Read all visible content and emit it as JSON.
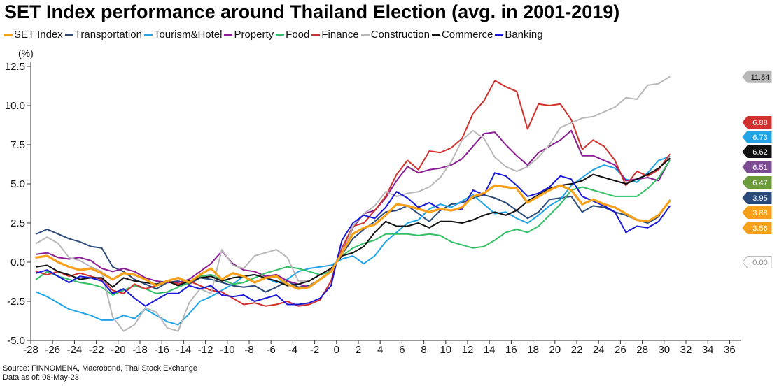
{
  "chart_data": {
    "type": "line",
    "title": "SET Index performance around Thailand Election (avg. in 2001-2019)",
    "ylabel": "(%)",
    "xlabel": "",
    "xlim": [
      -28,
      37
    ],
    "ylim": [
      -5.0,
      12.5
    ],
    "x_ticks": [
      -28,
      -26,
      -24,
      -22,
      -20,
      -18,
      -16,
      -14,
      -12,
      -10,
      -8,
      -6,
      -4,
      -2,
      0,
      2,
      4,
      6,
      8,
      10,
      12,
      14,
      16,
      18,
      20,
      22,
      24,
      26,
      28,
      30,
      32,
      34,
      36
    ],
    "y_ticks": [
      -5.0,
      -2.5,
      0.0,
      2.5,
      5.0,
      7.5,
      10.0,
      12.5
    ],
    "grid": false,
    "legend_position": "top",
    "x": [
      -27.5,
      -26.5,
      -25.5,
      -24.5,
      -23.5,
      -22.5,
      -21.5,
      -20.5,
      -19.5,
      -18.5,
      -17.5,
      -16.5,
      -15.5,
      -14.5,
      -13.5,
      -12.5,
      -11.5,
      -10.5,
      -9.5,
      -8.5,
      -7.5,
      -6.5,
      -5.5,
      -4.5,
      -3.5,
      -2.5,
      -1.5,
      -0.5,
      0,
      0.5,
      1.5,
      2.5,
      3.5,
      4.5,
      5.5,
      6.5,
      7.5,
      8.5,
      9.5,
      10.5,
      11.5,
      12.5,
      13.5,
      14.5,
      15.5,
      16.5,
      17.5,
      18.5,
      19.5,
      20.5,
      21.5,
      22.5,
      23.5,
      24.5,
      25.5,
      26.5,
      27.5,
      28.5,
      29.5,
      30.5
    ],
    "series": [
      {
        "name": "SET Index",
        "color": "#f7a11a",
        "width": 3.2,
        "values": [
          0.3,
          0.4,
          0.0,
          -0.3,
          -0.5,
          -0.4,
          -0.7,
          -1.1,
          -0.7,
          -0.8,
          -1.1,
          -1.5,
          -1.2,
          -1.0,
          -1.3,
          -0.8,
          -0.4,
          -1.1,
          -0.7,
          -0.9,
          -1.3,
          -1.0,
          -0.9,
          -1.4,
          -1.7,
          -1.6,
          -1.1,
          -0.6,
          0.0,
          0.6,
          1.8,
          2.2,
          2.4,
          3.0,
          3.7,
          3.6,
          3.4,
          3.2,
          3.4,
          3.3,
          3.5,
          4.2,
          4.4,
          4.9,
          4.8,
          4.7,
          3.8,
          4.2,
          4.6,
          4.9,
          4.6,
          3.7,
          4.0,
          3.7,
          3.5,
          3.1,
          2.7,
          2.6,
          3.0,
          3.9
        ]
      },
      {
        "name": "Transportation",
        "color": "#2b4a7a",
        "width": 2,
        "values": [
          1.8,
          2.1,
          1.8,
          1.5,
          1.3,
          1.0,
          0.9,
          -0.3,
          -0.6,
          -1.1,
          -1.4,
          -1.7,
          -1.3,
          -1.2,
          -1.4,
          -1.0,
          -1.1,
          -1.3,
          -1.5,
          -1.6,
          -1.5,
          -1.9,
          -1.6,
          -1.2,
          -1.6,
          -1.5,
          -1.1,
          -0.6,
          0.0,
          0.5,
          1.5,
          2.1,
          2.6,
          3.2,
          3.3,
          3.6,
          3.1,
          2.6,
          3.3,
          3.7,
          3.8,
          4.1,
          4.3,
          4.1,
          3.8,
          3.3,
          2.8,
          3.2,
          4.0,
          4.1,
          4.2,
          3.2,
          3.6,
          3.5,
          3.2,
          3.0,
          2.7,
          2.5,
          2.9,
          3.95
        ]
      },
      {
        "name": "Tourism&Hotel",
        "color": "#20a4e6",
        "width": 2,
        "values": [
          -1.9,
          -2.2,
          -2.6,
          -3.0,
          -3.2,
          -3.4,
          -3.7,
          -3.7,
          -3.4,
          -3.6,
          -3.0,
          -3.4,
          -3.8,
          -4.0,
          -3.3,
          -2.5,
          -2.2,
          -1.8,
          -1.4,
          -0.9,
          -0.8,
          -1.0,
          -1.3,
          -1.1,
          -0.6,
          -0.4,
          -0.3,
          -0.2,
          0.0,
          0.2,
          0.4,
          -0.1,
          0.4,
          1.3,
          1.9,
          2.5,
          2.7,
          3.4,
          3.7,
          3.5,
          3.9,
          4.3,
          3.7,
          3.1,
          3.2,
          2.8,
          2.5,
          3.0,
          3.6,
          4.0,
          4.9,
          5.4,
          5.9,
          6.2,
          6.0,
          5.3,
          5.1,
          5.7,
          6.5,
          6.73
        ]
      },
      {
        "name": "Property",
        "color": "#8a1f94",
        "width": 2,
        "values": [
          0.5,
          0.6,
          0.3,
          0.2,
          0.3,
          0.1,
          -0.4,
          -0.6,
          -0.4,
          -0.6,
          -1.0,
          -1.2,
          -1.3,
          -1.3,
          -1.1,
          -0.6,
          -0.1,
          0.7,
          -0.1,
          -0.5,
          -0.6,
          -0.9,
          -0.8,
          -1.2,
          -1.4,
          -1.6,
          -1.1,
          -0.5,
          0.0,
          0.6,
          2.2,
          3.1,
          3.3,
          4.1,
          5.2,
          6.1,
          5.7,
          5.9,
          6.0,
          6.2,
          6.6,
          7.4,
          8.2,
          8.3,
          7.5,
          6.8,
          6.2,
          7.0,
          7.4,
          7.8,
          8.4,
          6.8,
          6.8,
          6.5,
          6.2,
          5.2,
          5.3,
          5.4,
          5.2,
          6.51
        ]
      },
      {
        "name": "Food",
        "color": "#33c065",
        "width": 2,
        "values": [
          -1.1,
          -0.6,
          -0.9,
          -1.1,
          -1.3,
          -1.4,
          -1.6,
          -2.1,
          -1.8,
          -1.5,
          -1.7,
          -2.0,
          -1.9,
          -1.6,
          -1.3,
          -0.9,
          -0.8,
          -1.1,
          -1.4,
          -1.3,
          -1.0,
          -0.7,
          -0.5,
          -0.3,
          -0.4,
          -0.6,
          -0.8,
          -0.6,
          0.0,
          0.4,
          0.9,
          1.2,
          1.4,
          1.8,
          1.8,
          1.8,
          1.7,
          1.8,
          1.7,
          1.3,
          1.1,
          0.9,
          1.0,
          1.4,
          1.9,
          2.1,
          1.9,
          2.3,
          3.0,
          3.7,
          4.6,
          4.8,
          4.6,
          4.4,
          4.2,
          4.2,
          4.2,
          4.7,
          5.4,
          6.47
        ]
      },
      {
        "name": "Finance",
        "color": "#d0312e",
        "width": 2,
        "values": [
          -0.6,
          -0.8,
          -0.6,
          -0.9,
          -0.7,
          -0.9,
          -1.1,
          -1.8,
          -2.0,
          -1.4,
          -1.7,
          -1.5,
          -1.2,
          -1.4,
          -1.2,
          -1.5,
          -1.8,
          -1.9,
          -2.3,
          -2.7,
          -2.6,
          -2.8,
          -2.7,
          -2.5,
          -2.8,
          -2.7,
          -2.4,
          -1.2,
          0.0,
          0.9,
          2.3,
          2.5,
          3.3,
          4.2,
          5.6,
          6.5,
          5.9,
          7.1,
          7.0,
          7.3,
          7.9,
          9.5,
          10.3,
          11.6,
          11.2,
          10.9,
          8.5,
          10.1,
          10.0,
          10.1,
          9.1,
          7.2,
          7.8,
          7.4,
          6.5,
          4.9,
          5.8,
          5.5,
          5.9,
          6.88
        ]
      },
      {
        "name": "Construction",
        "color": "#b8b8b8",
        "width": 2,
        "values": [
          1.2,
          1.6,
          1.2,
          0.3,
          0.1,
          -0.3,
          -0.6,
          -3.5,
          -4.4,
          -4.0,
          -2.9,
          -3.2,
          -4.2,
          -4.4,
          -2.6,
          -1.7,
          -2.0,
          0.8,
          -0.2,
          -0.4,
          0.4,
          0.6,
          0.8,
          0.3,
          -1.2,
          -1.2,
          -0.8,
          -0.4,
          0.0,
          0.4,
          2.3,
          3.1,
          3.6,
          4.5,
          4.2,
          4.4,
          4.5,
          4.8,
          5.4,
          6.4,
          7.8,
          8.4,
          7.9,
          6.7,
          6.1,
          5.8,
          6.1,
          6.7,
          7.5,
          8.6,
          8.9,
          9.2,
          9.3,
          9.6,
          9.9,
          10.5,
          10.4,
          11.3,
          11.4,
          11.84
        ]
      },
      {
        "name": "Commerce",
        "color": "#111111",
        "width": 2,
        "values": [
          -0.3,
          -0.2,
          -0.6,
          -0.8,
          -1.1,
          -1.0,
          -1.0,
          -1.6,
          -1.0,
          -1.2,
          -1.3,
          -1.4,
          -1.2,
          -1.5,
          -1.2,
          -1.0,
          -0.9,
          -1.2,
          -1.0,
          -0.9,
          -0.8,
          -1.0,
          -1.2,
          -1.5,
          -1.4,
          -1.2,
          -0.8,
          -0.4,
          0.0,
          0.4,
          0.6,
          1.0,
          1.9,
          2.6,
          2.3,
          2.3,
          2.5,
          2.2,
          2.6,
          2.6,
          2.5,
          2.7,
          3.0,
          3.2,
          3.0,
          3.3,
          3.9,
          4.3,
          4.7,
          4.9,
          5.0,
          5.2,
          5.6,
          5.4,
          5.2,
          5.0,
          5.3,
          5.6,
          6.0,
          6.62
        ]
      },
      {
        "name": "Banking",
        "color": "#1818d8",
        "width": 2,
        "values": [
          -0.7,
          -0.5,
          -0.9,
          -1.3,
          -0.9,
          -1.0,
          -1.2,
          -2.0,
          -1.7,
          -2.3,
          -2.8,
          -2.4,
          -2.0,
          -2.0,
          -1.5,
          -1.7,
          -1.5,
          -2.1,
          -2.2,
          -2.1,
          -2.5,
          -2.3,
          -2.1,
          -2.7,
          -2.7,
          -2.6,
          -2.3,
          -1.5,
          0.0,
          1.4,
          2.5,
          3.0,
          2.8,
          3.5,
          4.5,
          4.1,
          3.5,
          3.8,
          3.4,
          3.3,
          3.4,
          4.6,
          4.3,
          5.7,
          5.5,
          4.9,
          4.2,
          4.4,
          4.8,
          5.5,
          5.3,
          4.2,
          3.9,
          3.6,
          3.2,
          1.9,
          2.3,
          2.2,
          2.6,
          3.56
        ]
      }
    ],
    "end_labels": [
      {
        "text": "11.84",
        "value": 11.84,
        "color": "#b8b8b8"
      },
      {
        "text": "6.88",
        "value": 6.88,
        "color": "#d0312e"
      },
      {
        "text": "6.73",
        "value": 6.73,
        "color": "#20a4e6"
      },
      {
        "text": "6.62",
        "value": 6.62,
        "color": "#111111"
      },
      {
        "text": "6.51",
        "value": 6.51,
        "color": "#7b4b94"
      },
      {
        "text": "6.47",
        "value": 6.47,
        "color": "#6a9a3a"
      },
      {
        "text": "3.95",
        "value": 3.95,
        "color": "#2b4a7a"
      },
      {
        "text": "3.88",
        "value": 3.88,
        "color": "#f7a11a"
      },
      {
        "text": "3.56",
        "value": 3.56,
        "color": "#f7a11a"
      },
      {
        "text": "0.00",
        "value": 0.0,
        "color": "#ffffff"
      }
    ]
  },
  "footer": {
    "source": "Source: FINNOMENA, Macrobond, Thai Stock Exchange",
    "date": "Data as of: 08-May-23"
  }
}
